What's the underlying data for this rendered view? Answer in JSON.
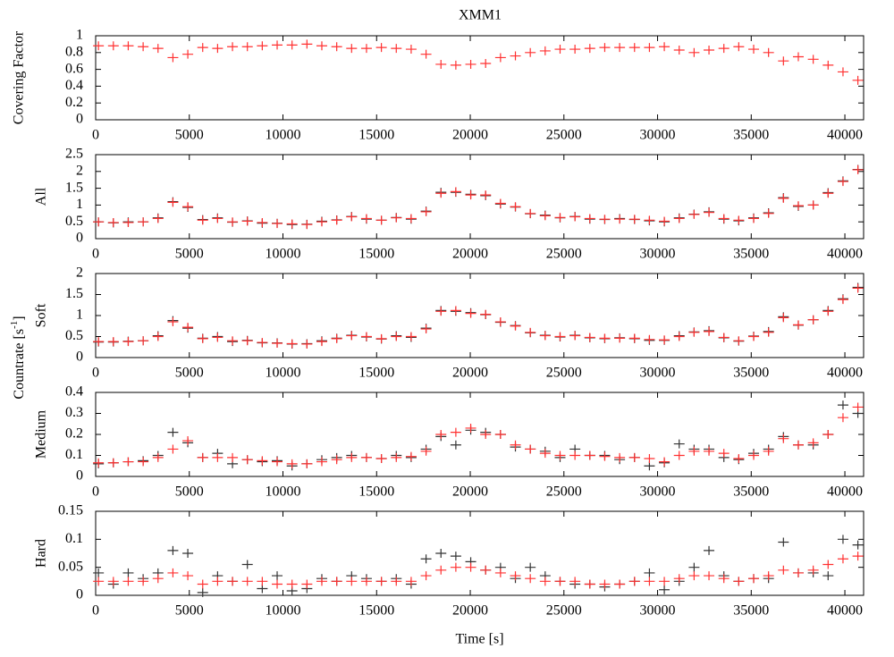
{
  "chart_data": [
    {
      "type": "scatter",
      "title": "XMM1",
      "ylabel": "Covering Factor",
      "x": [
        150,
        945,
        1740,
        2535,
        3330,
        4125,
        4920,
        5715,
        6510,
        7305,
        8100,
        8895,
        9690,
        10485,
        11280,
        12075,
        12870,
        13665,
        14460,
        15255,
        16050,
        16845,
        17640,
        18435,
        19230,
        20025,
        20820,
        21615,
        22410,
        23205,
        24000,
        24795,
        25590,
        26385,
        27180,
        27975,
        28770,
        29565,
        30360,
        31155,
        31950,
        32745,
        33540,
        34335,
        35130,
        35925,
        36720,
        37515,
        38310,
        39105,
        39900,
        40695
      ],
      "series": [
        {
          "color": "#ff3030",
          "values": [
            0.88,
            0.88,
            0.88,
            0.87,
            0.85,
            0.74,
            0.78,
            0.86,
            0.85,
            0.87,
            0.87,
            0.88,
            0.89,
            0.89,
            0.9,
            0.88,
            0.87,
            0.85,
            0.85,
            0.86,
            0.85,
            0.84,
            0.78,
            0.66,
            0.65,
            0.66,
            0.67,
            0.74,
            0.76,
            0.8,
            0.82,
            0.84,
            0.84,
            0.85,
            0.86,
            0.86,
            0.86,
            0.86,
            0.87,
            0.83,
            0.8,
            0.83,
            0.85,
            0.87,
            0.84,
            0.8,
            0.7,
            0.75,
            0.72,
            0.65,
            0.57,
            0.47
          ]
        }
      ],
      "xlim": [
        0,
        41000
      ],
      "xticks": [
        0,
        5000,
        10000,
        15000,
        20000,
        25000,
        30000,
        35000,
        40000
      ],
      "ylim": [
        0,
        1
      ],
      "yticks": [
        0,
        0.2,
        0.4,
        0.6,
        0.8,
        1
      ]
    },
    {
      "type": "scatter",
      "ylabel": "All",
      "x": [
        150,
        945,
        1740,
        2535,
        3330,
        4125,
        4920,
        5715,
        6510,
        7305,
        8100,
        8895,
        9690,
        10485,
        11280,
        12075,
        12870,
        13665,
        14460,
        15255,
        16050,
        16845,
        17640,
        18435,
        19230,
        20025,
        20820,
        21615,
        22410,
        23205,
        24000,
        24795,
        25590,
        26385,
        27180,
        27975,
        28770,
        29565,
        30360,
        31155,
        31950,
        32745,
        33540,
        34335,
        35130,
        35925,
        36720,
        37515,
        38310,
        39105,
        39900,
        40695
      ],
      "series": [
        {
          "color": "#333333",
          "values": [
            0.5,
            0.47,
            0.5,
            0.5,
            0.62,
            1.1,
            0.93,
            0.57,
            0.62,
            0.49,
            0.53,
            0.46,
            0.46,
            0.42,
            0.43,
            0.52,
            0.56,
            0.66,
            0.58,
            0.55,
            0.63,
            0.58,
            0.82,
            1.38,
            1.38,
            1.32,
            1.28,
            1.03,
            0.94,
            0.74,
            0.7,
            0.62,
            0.66,
            0.58,
            0.57,
            0.6,
            0.57,
            0.53,
            0.5,
            0.62,
            0.73,
            0.8,
            0.58,
            0.53,
            0.62,
            0.77,
            1.22,
            0.96,
            1.0,
            1.37,
            1.72,
            2.06
          ]
        },
        {
          "color": "#ff3030",
          "values": [
            0.5,
            0.48,
            0.48,
            0.5,
            0.6,
            1.08,
            0.95,
            0.55,
            0.6,
            0.5,
            0.52,
            0.48,
            0.45,
            0.44,
            0.42,
            0.5,
            0.55,
            0.65,
            0.6,
            0.55,
            0.62,
            0.6,
            0.8,
            1.35,
            1.4,
            1.3,
            1.3,
            1.05,
            0.95,
            0.75,
            0.68,
            0.63,
            0.65,
            0.6,
            0.58,
            0.58,
            0.58,
            0.55,
            0.52,
            0.6,
            0.72,
            0.78,
            0.6,
            0.55,
            0.6,
            0.75,
            1.2,
            0.98,
            1.0,
            1.35,
            1.7,
            2.05
          ]
        }
      ],
      "xlim": [
        0,
        41000
      ],
      "xticks": [
        0,
        5000,
        10000,
        15000,
        20000,
        25000,
        30000,
        35000,
        40000
      ],
      "ylim": [
        0,
        2.5
      ],
      "yticks": [
        0,
        0.5,
        1,
        1.5,
        2,
        2.5
      ]
    },
    {
      "type": "scatter",
      "ylabel": "Soft",
      "x": [
        150,
        945,
        1740,
        2535,
        3330,
        4125,
        4920,
        5715,
        6510,
        7305,
        8100,
        8895,
        9690,
        10485,
        11280,
        12075,
        12870,
        13665,
        14460,
        15255,
        16050,
        16845,
        17640,
        18435,
        19230,
        20025,
        20820,
        21615,
        22410,
        23205,
        24000,
        24795,
        25590,
        26385,
        27180,
        27975,
        28770,
        29565,
        30360,
        31155,
        31950,
        32745,
        33540,
        34335,
        35130,
        35925,
        36720,
        37515,
        38310,
        39105,
        39900,
        40695
      ],
      "series": [
        {
          "color": "#333333",
          "values": [
            0.37,
            0.37,
            0.39,
            0.4,
            0.52,
            0.88,
            0.7,
            0.46,
            0.5,
            0.38,
            0.41,
            0.35,
            0.35,
            0.32,
            0.33,
            0.4,
            0.46,
            0.53,
            0.49,
            0.44,
            0.52,
            0.48,
            0.7,
            1.12,
            1.1,
            1.07,
            1.02,
            0.84,
            0.76,
            0.59,
            0.53,
            0.49,
            0.53,
            0.47,
            0.45,
            0.47,
            0.45,
            0.41,
            0.41,
            0.52,
            0.61,
            0.64,
            0.47,
            0.39,
            0.51,
            0.62,
            0.97,
            0.77,
            0.9,
            1.12,
            1.4,
            1.67
          ]
        },
        {
          "color": "#ff3030",
          "values": [
            0.38,
            0.38,
            0.38,
            0.4,
            0.5,
            0.85,
            0.72,
            0.45,
            0.48,
            0.4,
            0.4,
            0.36,
            0.34,
            0.33,
            0.32,
            0.38,
            0.45,
            0.52,
            0.5,
            0.45,
            0.5,
            0.5,
            0.68,
            1.1,
            1.12,
            1.05,
            1.03,
            0.85,
            0.75,
            0.6,
            0.52,
            0.5,
            0.52,
            0.48,
            0.46,
            0.46,
            0.46,
            0.43,
            0.42,
            0.5,
            0.6,
            0.62,
            0.48,
            0.4,
            0.5,
            0.6,
            0.95,
            0.78,
            0.9,
            1.1,
            1.38,
            1.65
          ]
        }
      ],
      "xlim": [
        0,
        41000
      ],
      "xticks": [
        0,
        5000,
        10000,
        15000,
        20000,
        25000,
        30000,
        35000,
        40000
      ],
      "ylim": [
        0,
        2
      ],
      "yticks": [
        0,
        0.5,
        1,
        1.5,
        2
      ]
    },
    {
      "type": "scatter",
      "ylabel": "Medium",
      "x": [
        150,
        945,
        1740,
        2535,
        3330,
        4125,
        4920,
        5715,
        6510,
        7305,
        8100,
        8895,
        9690,
        10485,
        11280,
        12075,
        12870,
        13665,
        14460,
        15255,
        16050,
        16845,
        17640,
        18435,
        19230,
        20025,
        20820,
        21615,
        22410,
        23205,
        24000,
        24795,
        25590,
        26385,
        27180,
        27975,
        28770,
        29565,
        30360,
        31155,
        31950,
        32745,
        33540,
        34335,
        35130,
        35925,
        36720,
        37515,
        38310,
        39105,
        39900,
        40695
      ],
      "series": [
        {
          "color": "#333333",
          "values": [
            0.06,
            0.065,
            0.07,
            0.075,
            0.1,
            0.21,
            0.16,
            0.09,
            0.11,
            0.06,
            0.08,
            0.07,
            0.075,
            0.05,
            0.06,
            0.08,
            0.09,
            0.1,
            0.09,
            0.085,
            0.1,
            0.09,
            0.13,
            0.19,
            0.15,
            0.22,
            0.21,
            0.2,
            0.14,
            0.13,
            0.12,
            0.09,
            0.13,
            0.1,
            0.1,
            0.08,
            0.09,
            0.05,
            0.065,
            0.155,
            0.13,
            0.13,
            0.09,
            0.08,
            0.11,
            0.13,
            0.19,
            0.15,
            0.15,
            0.2,
            0.34,
            0.3
          ]
        },
        {
          "color": "#ff3030",
          "values": [
            0.065,
            0.065,
            0.07,
            0.07,
            0.09,
            0.13,
            0.17,
            0.09,
            0.09,
            0.09,
            0.08,
            0.075,
            0.07,
            0.06,
            0.06,
            0.07,
            0.08,
            0.09,
            0.09,
            0.085,
            0.09,
            0.095,
            0.12,
            0.2,
            0.21,
            0.23,
            0.2,
            0.2,
            0.15,
            0.13,
            0.11,
            0.1,
            0.1,
            0.1,
            0.095,
            0.09,
            0.09,
            0.085,
            0.07,
            0.1,
            0.12,
            0.12,
            0.11,
            0.085,
            0.1,
            0.12,
            0.18,
            0.15,
            0.16,
            0.2,
            0.28,
            0.33
          ]
        }
      ],
      "xlim": [
        0,
        41000
      ],
      "xticks": [
        0,
        5000,
        10000,
        15000,
        20000,
        25000,
        30000,
        35000,
        40000
      ],
      "ylim": [
        0,
        0.4
      ],
      "yticks": [
        0,
        0.1,
        0.2,
        0.3,
        0.4
      ]
    },
    {
      "type": "scatter",
      "ylabel": "Hard",
      "xlabel": "Time [s]",
      "x": [
        150,
        945,
        1740,
        2535,
        3330,
        4125,
        4920,
        5715,
        6510,
        7305,
        8100,
        8895,
        9690,
        10485,
        11280,
        12075,
        12870,
        13665,
        14460,
        15255,
        16050,
        16845,
        17640,
        18435,
        19230,
        20025,
        20820,
        21615,
        22410,
        23205,
        24000,
        24795,
        25590,
        26385,
        27180,
        27975,
        28770,
        29565,
        30360,
        31155,
        31950,
        32745,
        33540,
        34335,
        35130,
        35925,
        36720,
        37515,
        38310,
        39105,
        39900,
        40695
      ],
      "series": [
        {
          "color": "#333333",
          "values": [
            0.04,
            0.02,
            0.04,
            0.03,
            0.04,
            0.08,
            0.075,
            0.005,
            0.035,
            0.025,
            0.055,
            0.012,
            0.035,
            0.008,
            0.012,
            0.03,
            0.025,
            0.035,
            0.03,
            0.025,
            0.03,
            0.02,
            0.065,
            0.075,
            0.07,
            0.06,
            0.045,
            0.05,
            0.03,
            0.05,
            0.035,
            0.025,
            0.02,
            0.02,
            0.015,
            0.02,
            0.025,
            0.04,
            0.01,
            0.025,
            0.05,
            0.08,
            0.035,
            0.025,
            0.03,
            0.03,
            0.095,
            0.04,
            0.04,
            0.035,
            0.1,
            0.09
          ]
        },
        {
          "color": "#ff3030",
          "values": [
            0.025,
            0.025,
            0.025,
            0.025,
            0.03,
            0.04,
            0.035,
            0.02,
            0.025,
            0.025,
            0.025,
            0.025,
            0.02,
            0.02,
            0.02,
            0.025,
            0.025,
            0.025,
            0.025,
            0.025,
            0.025,
            0.025,
            0.035,
            0.045,
            0.05,
            0.05,
            0.045,
            0.04,
            0.035,
            0.03,
            0.025,
            0.025,
            0.025,
            0.02,
            0.02,
            0.02,
            0.025,
            0.025,
            0.025,
            0.03,
            0.035,
            0.035,
            0.03,
            0.025,
            0.03,
            0.035,
            0.045,
            0.04,
            0.045,
            0.055,
            0.065,
            0.07
          ]
        }
      ],
      "xlim": [
        0,
        41000
      ],
      "xticks": [
        0,
        5000,
        10000,
        15000,
        20000,
        25000,
        30000,
        35000,
        40000
      ],
      "ylim": [
        0,
        0.15
      ],
      "yticks": [
        0,
        0.05,
        0.1,
        0.15
      ]
    }
  ],
  "group_ylabel": {
    "text": "Countrate [s",
    "sup": "-1",
    "close": "]"
  }
}
